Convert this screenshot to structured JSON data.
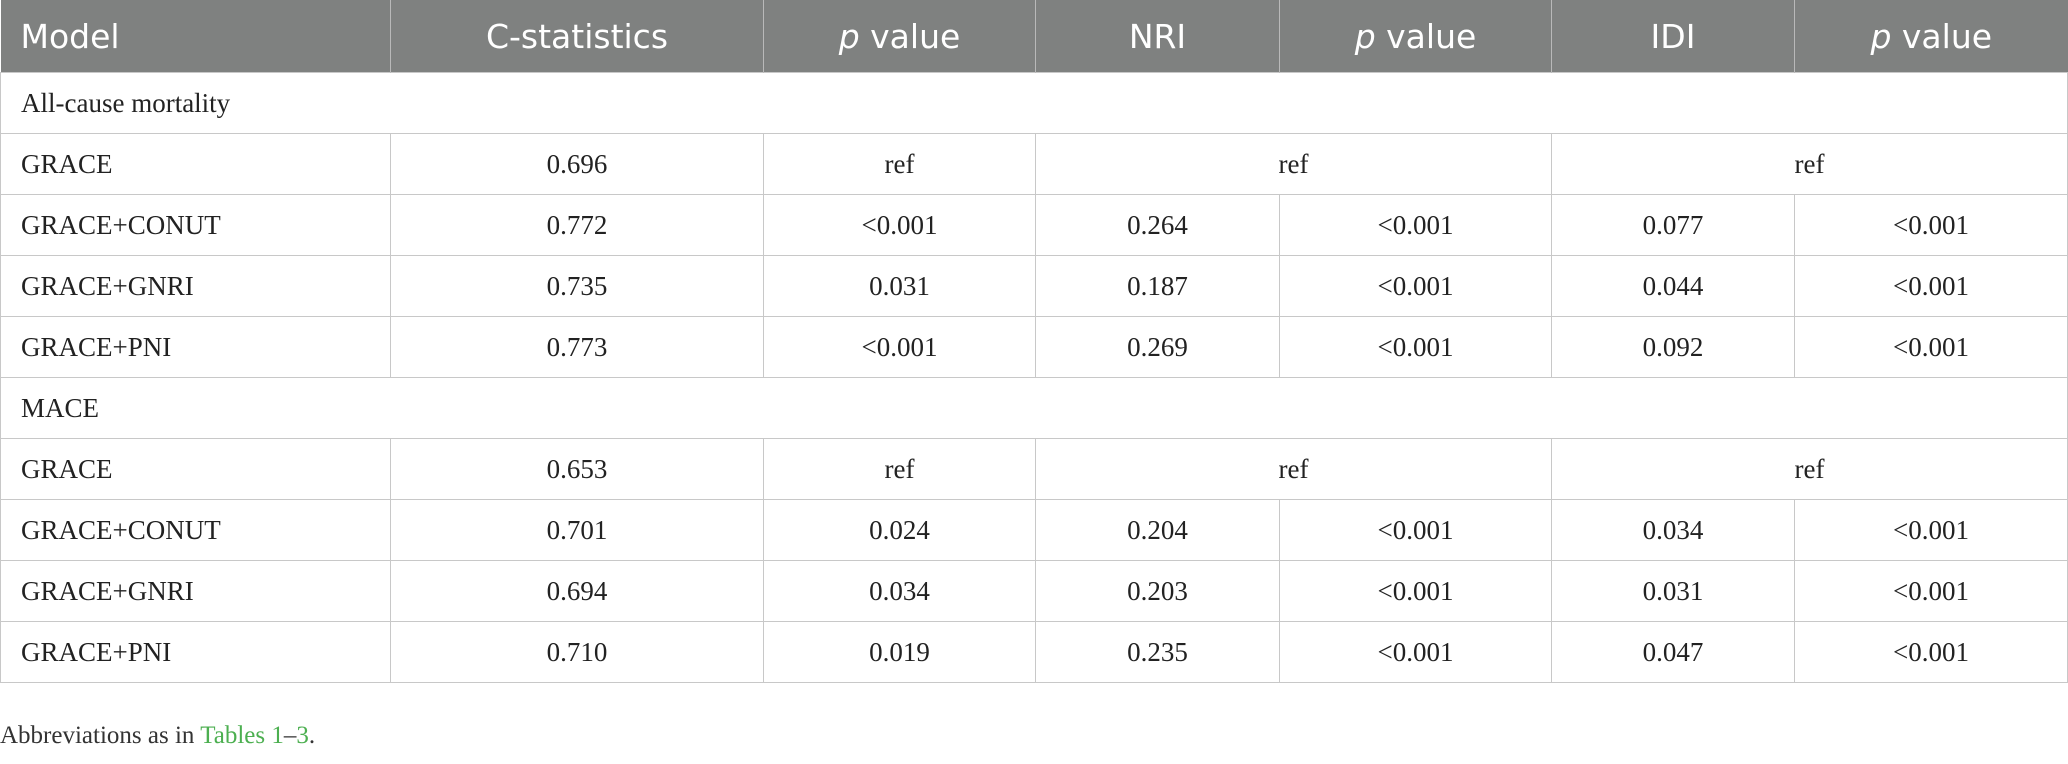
{
  "header": {
    "model": "Model",
    "c_statistics": "C-statistics",
    "p_italic": "p",
    "value_word": " value",
    "nri": "NRI",
    "idi": "IDI"
  },
  "sections": [
    {
      "title": "All-cause mortality",
      "rows": [
        {
          "model": "GRACE",
          "c": "0.696",
          "p1": "ref",
          "nri": "ref",
          "idi": "ref"
        },
        {
          "model": "GRACE+CONUT",
          "c": "0.772",
          "p1": "<0.001",
          "nri": "0.264",
          "p2": "<0.001",
          "idi": "0.077",
          "p3": "<0.001"
        },
        {
          "model": "GRACE+GNRI",
          "c": "0.735",
          "p1": "0.031",
          "nri": "0.187",
          "p2": "<0.001",
          "idi": "0.044",
          "p3": "<0.001"
        },
        {
          "model": "GRACE+PNI",
          "c": "0.773",
          "p1": "<0.001",
          "nri": "0.269",
          "p2": "<0.001",
          "idi": "0.092",
          "p3": "<0.001"
        }
      ]
    },
    {
      "title": "MACE",
      "rows": [
        {
          "model": "GRACE",
          "c": "0.653",
          "p1": "ref",
          "nri": "ref",
          "idi": "ref"
        },
        {
          "model": "GRACE+CONUT",
          "c": "0.701",
          "p1": "0.024",
          "nri": "0.204",
          "p2": "<0.001",
          "idi": "0.034",
          "p3": "<0.001"
        },
        {
          "model": "GRACE+GNRI",
          "c": "0.694",
          "p1": "0.034",
          "nri": "0.203",
          "p2": "<0.001",
          "idi": "0.031",
          "p3": "<0.001"
        },
        {
          "model": "GRACE+PNI",
          "c": "0.710",
          "p1": "0.019",
          "nri": "0.235",
          "p2": "<0.001",
          "idi": "0.047",
          "p3": "<0.001"
        }
      ]
    }
  ],
  "footnote": {
    "prefix": "Abbreviations as in ",
    "link_start": "Tables 1",
    "dash": "–",
    "link_end": "3",
    "suffix": "."
  },
  "colors": {
    "header_bg": "#7f8180",
    "link": "#4caf50"
  }
}
